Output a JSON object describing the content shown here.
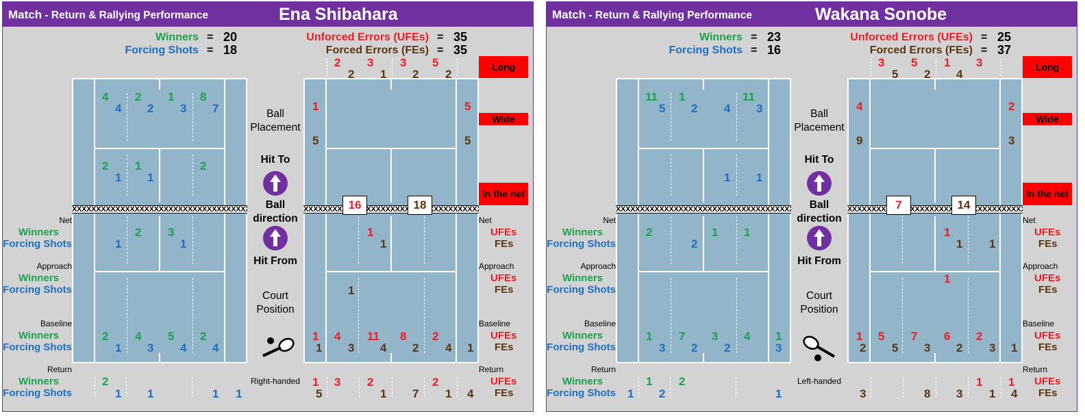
{
  "title": "Match",
  "subtitle": " - Return & Rallying Performance",
  "stat_labels": {
    "winners": "Winners",
    "forcing": "Forcing Shots",
    "ufes": "Unforced Errors (UFEs)",
    "fes": "Forced Errors (FEs)",
    "eq": "=",
    "long": "Long",
    "wide": "Wide",
    "in_net": "in the net",
    "net": "Net",
    "approach": "Approach",
    "baseline": "Baseline",
    "return": "Return",
    "ufes_short": "UFEs",
    "fes_short": "FEs",
    "ball_placement": [
      "Ball",
      "Placement"
    ],
    "hit_to": "Hit To",
    "ball_direction": [
      "Ball",
      "direction"
    ],
    "hit_from": "Hit From",
    "court_position": [
      "Court",
      "Position"
    ]
  },
  "colors": {
    "purple": "#7030a0",
    "winners": "#1ba24c",
    "forcing": "#1e6fc2",
    "ufes": "#ee1c23",
    "fes": "#5b3411",
    "court": "#93b5ca"
  },
  "players": [
    {
      "name": "Ena Shibahara",
      "hand": "Right-handed",
      "icon": "racket-ball-icon",
      "winners": "20",
      "forcing": "18",
      "ufes": "35",
      "fes": "35",
      "net_ufes": "16",
      "net_fes": "18",
      "long_ufes": [
        "2",
        "3",
        "3",
        "5"
      ],
      "long_fes": [
        "2",
        "1",
        "2",
        "2"
      ],
      "left_deep_ufes": "1",
      "left_deep_fes": "5",
      "right_deep_ufes": "5",
      "right_deep_fes": "5",
      "net_zone_ufes": "1",
      "net_zone_fes": "1",
      "approach_fes": "1",
      "base_ufes": [
        "1",
        "4",
        "11",
        "8",
        "2"
      ],
      "base_fes": [
        "1",
        "3",
        "4",
        "2",
        "4",
        "1"
      ],
      "ret_ufes": [
        "1",
        "3",
        "2",
        "2"
      ],
      "ret_fes": [
        "5",
        "1",
        "7",
        "1",
        "4"
      ],
      "deep_w": [
        "4",
        "2",
        "1",
        "8"
      ],
      "deep_f": [
        "4",
        "2",
        "3",
        "7"
      ],
      "mid_w": [
        "2",
        "1",
        "2"
      ],
      "mid_f": [
        "1",
        "1"
      ],
      "lnet_w": [
        "2",
        "3"
      ],
      "lnet_f": [
        "1",
        "1"
      ],
      "lbase_w": [
        "2",
        "4",
        "5",
        "2"
      ],
      "lbase_f": [
        "1",
        "3",
        "4",
        "4"
      ],
      "lret_w": [
        "2"
      ],
      "lret_f": [
        "1",
        "1",
        "1",
        "1"
      ]
    },
    {
      "name": "Wakana Sonobe",
      "hand": "Left-handed",
      "icon": "racket-ball-icon",
      "winners": "23",
      "forcing": "16",
      "ufes": "25",
      "fes": "37",
      "net_ufes": "7",
      "net_fes": "14",
      "long_ufes": [
        "3",
        "5",
        "1",
        "3"
      ],
      "long_fes": [
        "5",
        "2",
        "4"
      ],
      "left_deep_ufes": "4",
      "left_deep_fes": "9",
      "right_deep_ufes": "2",
      "right_deep_fes": "3",
      "net_zone_ufes": "1",
      "net_zone_fes": [
        "1",
        "1"
      ],
      "approach_ufes": "1",
      "base_ufes": [
        "1",
        "5",
        "7",
        "6",
        "2"
      ],
      "base_fes": [
        "2",
        "5",
        "3",
        "2",
        "3",
        "1"
      ],
      "ret_ufes": [
        "1",
        "1"
      ],
      "ret_fes": [
        "3",
        "8",
        "3",
        "1",
        "4"
      ],
      "deep_w": [
        "11",
        "1",
        "11"
      ],
      "deep_f": [
        "5",
        "2",
        "4",
        "3"
      ],
      "mid_f": [
        "1",
        "1"
      ],
      "lnet_w": [
        "2",
        "1",
        "1"
      ],
      "lnet_f": [
        "2"
      ],
      "lbase_w": [
        "1",
        "7",
        "3",
        "4",
        "1"
      ],
      "lbase_f": [
        "3",
        "2",
        "2",
        "3"
      ],
      "lret_w": [
        "1",
        "2"
      ],
      "lret_f": [
        "1",
        "2",
        "1"
      ]
    }
  ]
}
